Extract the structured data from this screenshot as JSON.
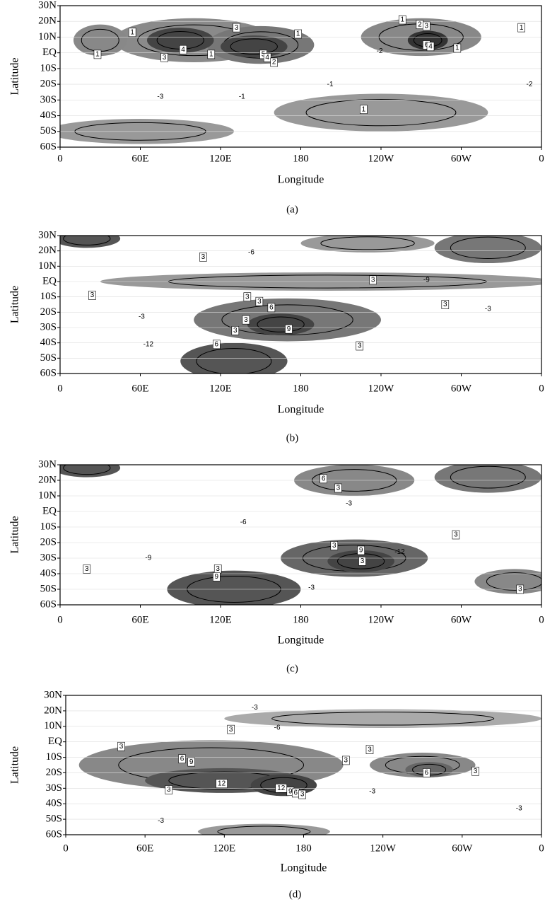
{
  "chart_data": [
    {
      "type": "contour",
      "label": "(a)",
      "x_label": "Longitude",
      "y_label": "Latitude",
      "xlim": [
        0,
        360
      ],
      "ylim": [
        -60,
        30
      ],
      "xticks": [
        0,
        {
          "value": 60,
          "label": "60E"
        },
        {
          "value": 120,
          "label": "120E"
        },
        180,
        {
          "value": 240,
          "label": "120W"
        },
        {
          "value": 300,
          "label": "60W"
        },
        {
          "value": 360,
          "label": "0"
        }
      ],
      "yticks": [
        {
          "value": 30,
          "label": "30N"
        },
        {
          "value": 20,
          "label": "20N"
        },
        {
          "value": 10,
          "label": "10N"
        },
        {
          "value": 0,
          "label": "EQ"
        },
        {
          "value": -10,
          "label": "10S"
        },
        {
          "value": -20,
          "label": "20S"
        },
        {
          "value": -30,
          "label": "30S"
        },
        {
          "value": -40,
          "label": "40S"
        },
        {
          "value": -50,
          "label": "50S"
        },
        {
          "value": -60,
          "label": "60S"
        }
      ],
      "grid": true,
      "contour_labels": [
        3,
        1,
        1,
        1,
        4,
        3,
        1,
        5,
        4,
        2,
        1,
        2,
        3,
        6,
        4,
        1,
        1,
        1,
        -1,
        -2,
        -2,
        -3,
        -1
      ]
    },
    {
      "type": "contour",
      "label": "(b)",
      "x_label": "Longitude",
      "y_label": "Latitude",
      "xlim": [
        0,
        360
      ],
      "ylim": [
        -60,
        30
      ],
      "xticks": [
        0,
        {
          "value": 60,
          "label": "60E"
        },
        {
          "value": 120,
          "label": "120E"
        },
        180,
        {
          "value": 240,
          "label": "120W"
        },
        {
          "value": 300,
          "label": "60W"
        },
        {
          "value": 360,
          "label": "0"
        }
      ],
      "yticks": [
        {
          "value": 30,
          "label": "30N"
        },
        {
          "value": 20,
          "label": "20N"
        },
        {
          "value": 10,
          "label": "10N"
        },
        {
          "value": 0,
          "label": "EQ"
        },
        {
          "value": -10,
          "label": "10S"
        },
        {
          "value": -20,
          "label": "20S"
        },
        {
          "value": -30,
          "label": "30S"
        },
        {
          "value": -40,
          "label": "40S"
        },
        {
          "value": -50,
          "label": "50S"
        },
        {
          "value": -60,
          "label": "60S"
        }
      ],
      "grid": true,
      "contour_labels": [
        3,
        3,
        3,
        6,
        3,
        3,
        9,
        6,
        3,
        3,
        3,
        3,
        -3,
        -6,
        -12,
        -9,
        -3
      ]
    },
    {
      "type": "contour",
      "label": "(c)",
      "x_label": "Longitude",
      "y_label": "Latitude",
      "xlim": [
        0,
        360
      ],
      "ylim": [
        -60,
        30
      ],
      "xticks": [
        0,
        {
          "value": 60,
          "label": "60E"
        },
        {
          "value": 120,
          "label": "120E"
        },
        180,
        {
          "value": 240,
          "label": "120W"
        },
        {
          "value": 300,
          "label": "60W"
        },
        {
          "value": 360,
          "label": "0"
        }
      ],
      "yticks": [
        {
          "value": 30,
          "label": "30N"
        },
        {
          "value": 20,
          "label": "20N"
        },
        {
          "value": 10,
          "label": "10N"
        },
        {
          "value": 0,
          "label": "EQ"
        },
        {
          "value": -10,
          "label": "10S"
        },
        {
          "value": -20,
          "label": "20S"
        },
        {
          "value": -30,
          "label": "30S"
        },
        {
          "value": -40,
          "label": "40S"
        },
        {
          "value": -50,
          "label": "50S"
        },
        {
          "value": -60,
          "label": "60S"
        }
      ],
      "grid": true,
      "contour_labels": [
        6,
        3,
        3,
        9,
        3,
        3,
        3,
        9,
        3,
        3,
        -6,
        -3,
        -12,
        -9,
        -3
      ]
    },
    {
      "type": "contour",
      "label": "(d)",
      "x_label": "Longitude",
      "y_label": "Latitude",
      "xlim": [
        0,
        360
      ],
      "ylim": [
        -60,
        30
      ],
      "xticks": [
        0,
        {
          "value": 60,
          "label": "60E"
        },
        {
          "value": 120,
          "label": "120E"
        },
        180,
        {
          "value": 240,
          "label": "120W"
        },
        {
          "value": 300,
          "label": "60W"
        },
        {
          "value": 360,
          "label": "0"
        }
      ],
      "yticks": [
        {
          "value": 30,
          "label": "30N"
        },
        {
          "value": 20,
          "label": "20N"
        },
        {
          "value": 10,
          "label": "10N"
        },
        {
          "value": 0,
          "label": "EQ"
        },
        {
          "value": -10,
          "label": "10S"
        },
        {
          "value": -20,
          "label": "20S"
        },
        {
          "value": -30,
          "label": "30S"
        },
        {
          "value": -40,
          "label": "40S"
        },
        {
          "value": -50,
          "label": "50S"
        },
        {
          "value": -60,
          "label": "60S"
        }
      ],
      "grid": true,
      "contour_labels": [
        3,
        3,
        6,
        9,
        12,
        3,
        12,
        9,
        6,
        3,
        3,
        3,
        6,
        3,
        -3,
        -6,
        -3,
        -3,
        -3
      ]
    }
  ]
}
